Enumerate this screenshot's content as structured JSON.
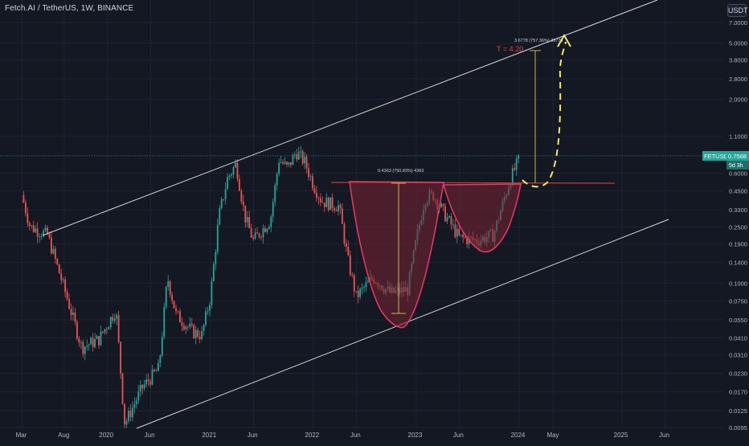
{
  "header": {
    "title": "Fetch.AI / TetherUS, 1W, BINANCE",
    "currency_button": "USDT"
  },
  "chart_data": {
    "type": "candlestick",
    "title": "Fetch.AI / TetherUS, 1W, BINANCE",
    "y_scale": "log",
    "ylim": [
      0.0095,
      7.0
    ],
    "y_ticks": [
      "7.0000",
      "5.0000",
      "3.8000",
      "2.8000",
      "2.0000",
      "1.1000",
      "0.8000",
      "0.6000",
      "0.4500",
      "0.3300",
      "0.2500",
      "0.1900",
      "0.1400",
      "0.1000",
      "0.0750",
      "0.0550",
      "0.0410",
      "0.0310",
      "0.0230",
      "0.0170",
      "0.0125",
      "0.0095"
    ],
    "x_ticks": [
      "Mar",
      "Aug",
      "2020",
      "Jun",
      "2021",
      "Jun",
      "2022",
      "Jun",
      "2023",
      "Jun",
      "2024",
      "May",
      "2025",
      "Jun"
    ],
    "x_range": [
      "2019-02",
      "2025-07"
    ],
    "candle_colors": {
      "up": "#26a69a",
      "down": "#ef5350"
    },
    "last_price": {
      "symbol": "FETUSDT",
      "value": "0.7568",
      "countdown": "5d 3h"
    },
    "annotations": {
      "cup_depth": "0.4363 (750.83%) 4363",
      "target_measure": "3.6778 (757.36%) 36778",
      "target_label": "T = 4.20",
      "neckline_price": 0.4363
    },
    "path_points": [
      [
        "2019-03",
        0.42
      ],
      [
        "2019-04",
        0.25
      ],
      [
        "2019-06",
        0.22
      ],
      [
        "2019-08",
        0.09
      ],
      [
        "2019-10",
        0.035
      ],
      [
        "2019-12",
        0.04
      ],
      [
        "2020-02",
        0.065
      ],
      [
        "2020-03",
        0.01
      ],
      [
        "2020-05",
        0.018
      ],
      [
        "2020-07",
        0.025
      ],
      [
        "2020-08",
        0.11
      ],
      [
        "2020-09",
        0.06
      ],
      [
        "2020-11",
        0.045
      ],
      [
        "2020-12",
        0.043
      ],
      [
        "2021-01",
        0.08
      ],
      [
        "2021-02",
        0.3
      ],
      [
        "2021-03",
        0.55
      ],
      [
        "2021-04",
        0.7
      ],
      [
        "2021-05",
        0.3
      ],
      [
        "2021-06",
        0.2
      ],
      [
        "2021-08",
        0.28
      ],
      [
        "2021-09",
        0.75
      ],
      [
        "2021-10",
        0.65
      ],
      [
        "2021-11",
        0.85
      ],
      [
        "2021-12",
        0.72
      ],
      [
        "2022-01",
        0.5
      ],
      [
        "2022-02",
        0.38
      ],
      [
        "2022-04",
        0.35
      ],
      [
        "2022-05",
        0.15
      ],
      [
        "2022-06",
        0.08
      ],
      [
        "2022-08",
        0.11
      ],
      [
        "2022-10",
        0.085
      ],
      [
        "2022-12",
        0.09
      ],
      [
        "2023-01",
        0.2
      ],
      [
        "2023-02",
        0.4
      ],
      [
        "2023-03",
        0.42
      ],
      [
        "2023-04",
        0.33
      ],
      [
        "2023-06",
        0.21
      ],
      [
        "2023-08",
        0.2
      ],
      [
        "2023-10",
        0.22
      ],
      [
        "2023-11",
        0.35
      ],
      [
        "2023-12",
        0.55
      ],
      [
        "2024-01",
        0.7568
      ]
    ]
  },
  "colors": {
    "background": "#141823",
    "grid": "#1f2332",
    "channel": "#d8d8d8",
    "cup_fill": "#7a2533",
    "cup_stroke": "#e83a63",
    "neckline": "#c23b3b",
    "measure": "#c9b84a",
    "projection": "#f2e96b",
    "target_text": "#e84141",
    "price_label_bg": "#26a69a"
  }
}
